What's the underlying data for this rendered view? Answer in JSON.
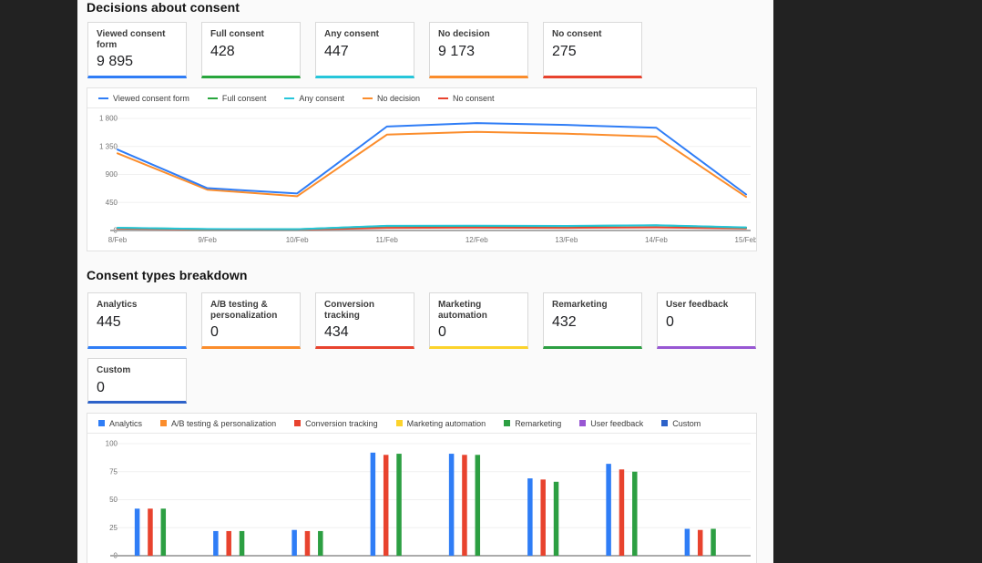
{
  "page": {
    "frame_color": "#222222",
    "content_bg": "#fafafa"
  },
  "decisions": {
    "title": "Decisions about consent",
    "cards": [
      {
        "label": "Viewed consent form",
        "value": "9 895",
        "color": "#2f7df6"
      },
      {
        "label": "Full consent",
        "value": "428",
        "color": "#28a63d"
      },
      {
        "label": "Any consent",
        "value": "447",
        "color": "#26c6da"
      },
      {
        "label": "No decision",
        "value": "9 173",
        "color": "#fb8d2c"
      },
      {
        "label": "No consent",
        "value": "275",
        "color": "#e8432e"
      }
    ]
  },
  "consent_types": {
    "title": "Consent types breakdown",
    "cards": [
      {
        "label": "Analytics",
        "value": "445",
        "color": "#2f7df6"
      },
      {
        "label": "A/B testing & personalization",
        "value": "0",
        "color": "#fb8d2c"
      },
      {
        "label": "Conversion tracking",
        "value": "434",
        "color": "#e8432e"
      },
      {
        "label": "Marketing automation",
        "value": "0",
        "color": "#fcd32c"
      },
      {
        "label": "Remarketing",
        "value": "432",
        "color": "#2c9f42"
      },
      {
        "label": "User feedback",
        "value": "0",
        "color": "#9857d3"
      },
      {
        "label": "Custom",
        "value": "0",
        "color": "#2d62c9"
      }
    ]
  },
  "chart_data": [
    {
      "type": "line",
      "title": "Decisions about consent",
      "x": [
        "8/Feb",
        "9/Feb",
        "10/Feb",
        "11/Feb",
        "12/Feb",
        "13/Feb",
        "14/Feb",
        "15/Feb"
      ],
      "series": [
        {
          "name": "Viewed consent form",
          "color": "#2f7df6",
          "values": [
            1300,
            680,
            595,
            1670,
            1725,
            1695,
            1650,
            580
          ]
        },
        {
          "name": "Full consent",
          "color": "#28a63d",
          "values": [
            42,
            22,
            20,
            72,
            74,
            70,
            82,
            46
          ]
        },
        {
          "name": "Any consent",
          "color": "#26c6da",
          "values": [
            44,
            23,
            21,
            75,
            77,
            73,
            85,
            49
          ]
        },
        {
          "name": "No decision",
          "color": "#fb8d2c",
          "values": [
            1240,
            655,
            550,
            1540,
            1585,
            1555,
            1508,
            540
          ]
        },
        {
          "name": "No consent",
          "color": "#e8432e",
          "values": [
            32,
            16,
            14,
            42,
            46,
            42,
            50,
            33
          ]
        }
      ],
      "ylim": [
        0,
        1800
      ],
      "yticks": [
        0,
        450,
        900,
        1350,
        1800
      ],
      "ytick_labels": [
        "0",
        "450",
        "900",
        "1 350",
        "1 800"
      ],
      "grid": true,
      "legend_position": "top"
    },
    {
      "type": "bar",
      "title": "Consent types breakdown",
      "group_count": 8,
      "x_axis_labels_cut_off": true,
      "series": [
        {
          "name": "Analytics",
          "color": "#2f7df6",
          "values": [
            42,
            22,
            23,
            92,
            91,
            69,
            82,
            24
          ]
        },
        {
          "name": "A/B testing & personalization",
          "color": "#fb8d2c",
          "values": [
            0,
            0,
            0,
            0,
            0,
            0,
            0,
            0
          ]
        },
        {
          "name": "Conversion tracking",
          "color": "#e8432e",
          "values": [
            42,
            22,
            22,
            90,
            90,
            68,
            77,
            23
          ]
        },
        {
          "name": "Marketing automation",
          "color": "#fcd32c",
          "values": [
            0,
            0,
            0,
            0,
            0,
            0,
            0,
            0
          ]
        },
        {
          "name": "Remarketing",
          "color": "#2c9f42",
          "values": [
            42,
            22,
            22,
            91,
            90,
            66,
            75,
            24
          ]
        },
        {
          "name": "User feedback",
          "color": "#9857d3",
          "values": [
            0,
            0,
            0,
            0,
            0,
            0,
            0,
            0
          ]
        },
        {
          "name": "Custom",
          "color": "#2d62c9",
          "values": [
            0,
            0,
            0,
            0,
            0,
            0,
            0,
            0
          ]
        }
      ],
      "ylim": [
        0,
        100
      ],
      "yticks": [
        0,
        25,
        50,
        75,
        100
      ],
      "ytick_labels": [
        "0",
        "25",
        "50",
        "75",
        "100"
      ],
      "grid": true,
      "legend_position": "top"
    }
  ]
}
